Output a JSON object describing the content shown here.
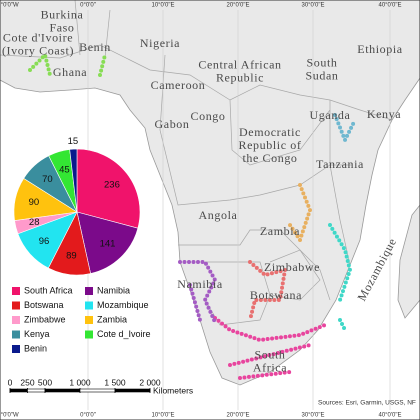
{
  "chart_data": {
    "type": "pie",
    "categories": [
      "South Africa",
      "Namibia",
      "Botswana",
      "Mozambique",
      "Zimbabwe",
      "Zambia",
      "Kenya",
      "Cote d_Ivoire",
      "Benin"
    ],
    "values": [
      236,
      141,
      89,
      96,
      28,
      90,
      70,
      45,
      15
    ],
    "colors": [
      "#f0136b",
      "#7b0a8a",
      "#e31a1c",
      "#22e4f0",
      "#ff9acb",
      "#ffc20e",
      "#3a8e9e",
      "#33e633",
      "#0a1a8c"
    ]
  },
  "map": {
    "labels": [
      [
        "Burkina",
        "Faso"
      ],
      [
        "Cote d'Ivoire",
        "(Ivory Coast)"
      ],
      [
        "Ghana"
      ],
      [
        "Benin"
      ],
      [
        "Nigeria"
      ],
      [
        "Ethiopia"
      ],
      [
        "Cameroon"
      ],
      [
        "Central African",
        "Republic"
      ],
      [
        "South",
        "Sudan"
      ],
      [
        "Gabon"
      ],
      [
        "Congo"
      ],
      [
        "Uganda"
      ],
      [
        "Kenya"
      ],
      [
        "Democratic",
        "Republic of",
        "the Congo"
      ],
      [
        "Tanzania"
      ],
      [
        "Angola"
      ],
      [
        "Zambia"
      ],
      [
        "Zimbabwe"
      ],
      [
        "Namibia"
      ],
      [
        "Botswana"
      ],
      [
        "Mozambique"
      ],
      [
        "South",
        "Africa"
      ]
    ],
    "graticule": [
      "0°0'0\"W",
      "0°0'0\"",
      "10°0'0\"E",
      "20°0'0\"E",
      "30°0'0\"E",
      "40°0'0\"E"
    ],
    "sources": "Sources: Esri, Garmin, USGS, NF"
  },
  "scale_bar": {
    "ticks": [
      0,
      250,
      500,
      {
        "value": 1000,
        "label": "1 000"
      },
      {
        "value": 1500,
        "label": "1 500"
      },
      {
        "value": 2000,
        "label": "2 000"
      }
    ],
    "unit": "Kilometers"
  }
}
